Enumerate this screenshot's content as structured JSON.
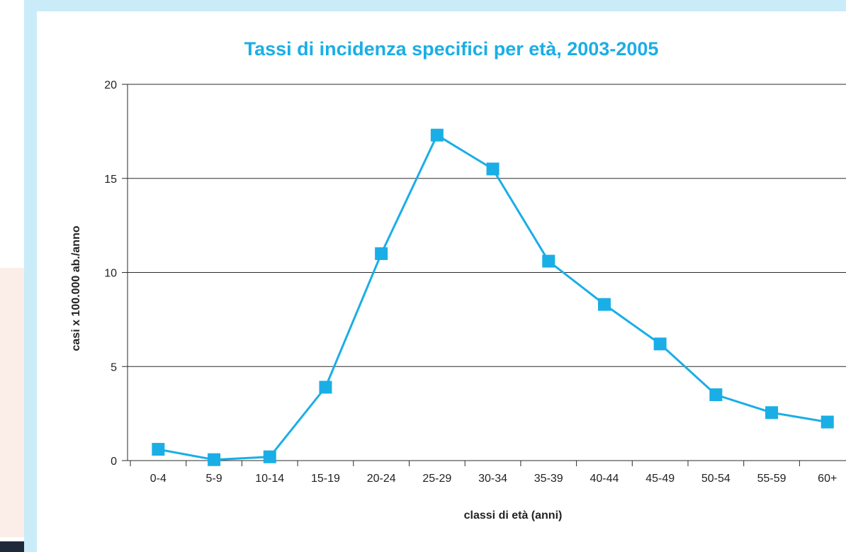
{
  "colors": {
    "accent": "#1aaee6",
    "frame": "#c9ecf8",
    "grid": "#2b2b2b"
  },
  "chart_data": {
    "type": "line",
    "title": "Tassi di incidenza specifici per età, 2003-2005",
    "xlabel": "classi di età (anni)",
    "ylabel": "casi x 100.000 ab./anno",
    "categories": [
      "0-4",
      "5-9",
      "10-14",
      "15-19",
      "20-24",
      "25-29",
      "30-34",
      "35-39",
      "40-44",
      "45-49",
      "50-54",
      "55-59",
      "60+"
    ],
    "series": [
      {
        "values": [
          0.6,
          0.05,
          0.2,
          3.9,
          11.0,
          17.3,
          15.5,
          10.6,
          8.3,
          6.2,
          3.5,
          2.55,
          2.05
        ]
      }
    ],
    "ylim": [
      0,
      20
    ],
    "yticks": [
      0,
      5,
      10,
      15,
      20
    ],
    "grid": true,
    "marker": "square"
  }
}
